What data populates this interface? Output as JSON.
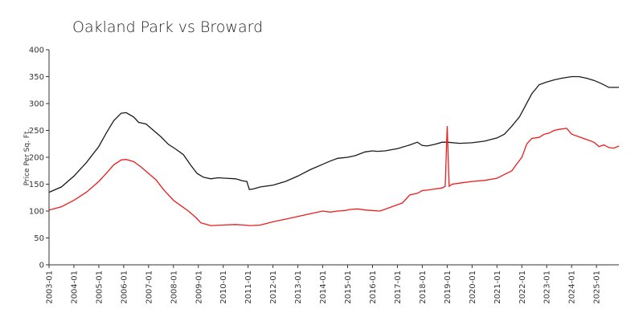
{
  "chart_data": {
    "type": "line",
    "title": "Oakland Park vs Broward",
    "xlabel": "",
    "ylabel": "Price Per Sq. Ft.",
    "ylim": [
      0,
      400
    ],
    "yticks": [
      0,
      50,
      100,
      150,
      200,
      250,
      300,
      350,
      400
    ],
    "xlim": [
      2003.0,
      2025.9
    ],
    "xtick_labels": [
      "2003-01",
      "2004-01",
      "2005-01",
      "2006-01",
      "2007-01",
      "2008-01",
      "2009-01",
      "2010-01",
      "2011-01",
      "2012-01",
      "2013-01",
      "2014-01",
      "2015-01",
      "2016-01",
      "2017-01",
      "2018-01",
      "2019-01",
      "2020-01",
      "2021-01",
      "2022-01",
      "2023-01",
      "2024-01",
      "2025-01"
    ],
    "legend": "none",
    "grid": false,
    "series": [
      {
        "name": "Broward",
        "color": "#1a1a1a",
        "x": [
          2003.0,
          2003.5,
          2004.0,
          2004.5,
          2005.0,
          2005.3,
          2005.6,
          2005.9,
          2006.1,
          2006.4,
          2006.6,
          2006.9,
          2007.2,
          2007.5,
          2007.8,
          2008.1,
          2008.4,
          2008.7,
          2008.95,
          2009.2,
          2009.5,
          2009.8,
          2010.1,
          2010.5,
          2010.8,
          2010.95,
          2011.05,
          2011.2,
          2011.5,
          2012.0,
          2012.5,
          2013.0,
          2013.5,
          2014.0,
          2014.3,
          2014.6,
          2015.0,
          2015.3,
          2015.7,
          2016.0,
          2016.2,
          2016.5,
          2017.0,
          2017.5,
          2017.8,
          2018.0,
          2018.2,
          2018.5,
          2018.8,
          2019.0,
          2019.5,
          2020.0,
          2020.5,
          2021.0,
          2021.3,
          2021.6,
          2021.9,
          2022.1,
          2022.4,
          2022.7,
          2023.0,
          2023.3,
          2023.6,
          2024.0,
          2024.3,
          2024.6,
          2024.9,
          2025.2,
          2025.5,
          2025.9
        ],
        "values": [
          135,
          145,
          165,
          190,
          220,
          245,
          268,
          282,
          283,
          275,
          265,
          262,
          250,
          238,
          224,
          215,
          205,
          185,
          170,
          163,
          160,
          162,
          161,
          160,
          156,
          155,
          140,
          141,
          145,
          148,
          155,
          165,
          177,
          187,
          193,
          198,
          200,
          203,
          210,
          212,
          211,
          212,
          216,
          223,
          228,
          222,
          221,
          224,
          228,
          228,
          226,
          227,
          230,
          236,
          243,
          258,
          275,
          292,
          318,
          335,
          340,
          344,
          347,
          350,
          350,
          347,
          343,
          337,
          330,
          330
        ]
      },
      {
        "name": "Oakland Park",
        "color": "#ee1c1c",
        "x": [
          2003.0,
          2003.5,
          2004.0,
          2004.5,
          2005.0,
          2005.3,
          2005.6,
          2005.9,
          2006.1,
          2006.4,
          2006.7,
          2007.0,
          2007.3,
          2007.6,
          2008.0,
          2008.3,
          2008.6,
          2008.9,
          2009.1,
          2009.5,
          2010.0,
          2010.5,
          2010.8,
          2011.1,
          2011.5,
          2012.0,
          2012.5,
          2013.0,
          2013.3,
          2013.7,
          2014.0,
          2014.3,
          2014.6,
          2014.9,
          2015.1,
          2015.4,
          2015.7,
          2016.0,
          2016.3,
          2016.6,
          2016.9,
          2017.2,
          2017.5,
          2017.8,
          2018.0,
          2018.2,
          2018.5,
          2018.8,
          2018.92,
          2019.0,
          2019.08,
          2019.2,
          2019.5,
          2020.0,
          2020.5,
          2021.0,
          2021.3,
          2021.6,
          2021.8,
          2022.0,
          2022.2,
          2022.4,
          2022.7,
          2022.9,
          2023.1,
          2023.3,
          2023.5,
          2023.8,
          2024.0,
          2024.3,
          2024.6,
          2024.9,
          2025.1,
          2025.3,
          2025.5,
          2025.7,
          2025.9
        ],
        "values": [
          102,
          108,
          120,
          135,
          155,
          170,
          186,
          195,
          196,
          192,
          182,
          170,
          158,
          140,
          120,
          110,
          100,
          88,
          78,
          73,
          74,
          75,
          74,
          73,
          74,
          80,
          85,
          90,
          93,
          97,
          100,
          98,
          100,
          101,
          103,
          104,
          102,
          101,
          100,
          105,
          110,
          115,
          130,
          133,
          138,
          139,
          141,
          143,
          146,
          258,
          146,
          150,
          152,
          155,
          157,
          161,
          168,
          175,
          188,
          200,
          225,
          235,
          237,
          243,
          245,
          250,
          252,
          254,
          243,
          238,
          233,
          228,
          220,
          223,
          218,
          217,
          221
        ]
      }
    ]
  }
}
